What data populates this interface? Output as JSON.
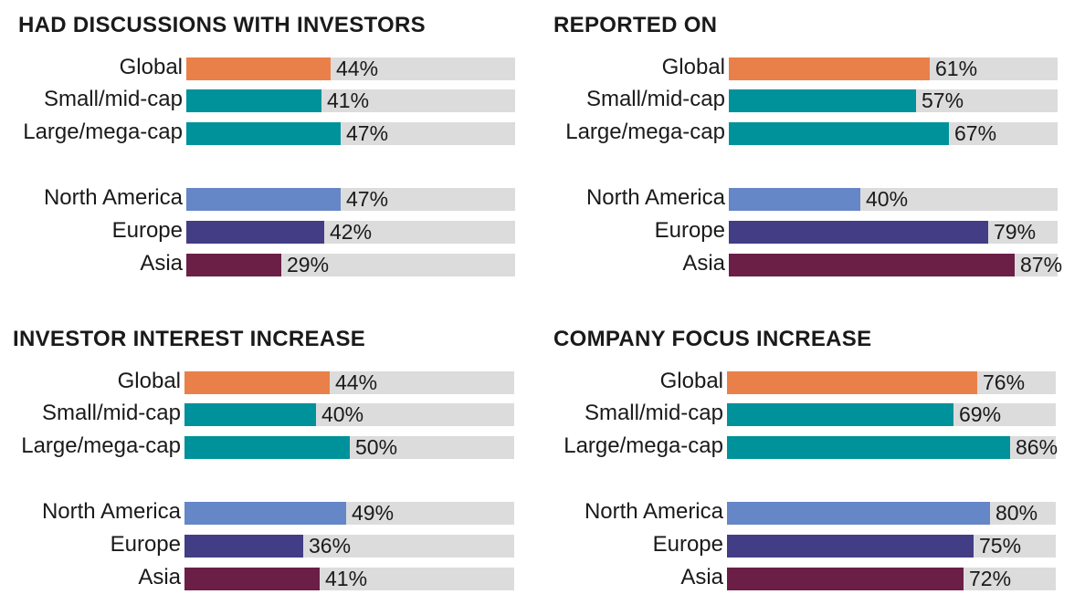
{
  "colors": {
    "Global": "#ea8049",
    "Small/mid-cap": "#00929a",
    "Large/mega-cap": "#00929a",
    "North America": "#6586c7",
    "Europe": "#433d86",
    "Asia": "#6b1f46",
    "track": "#dcdcdc"
  },
  "chart_data": [
    {
      "type": "bar",
      "title": "HAD DISCUSSIONS WITH INVESTORS",
      "categories": [
        "Global",
        "Small/mid-cap",
        "Large/mega-cap",
        "North America",
        "Europe",
        "Asia"
      ],
      "values": [
        44,
        41,
        47,
        47,
        42,
        29
      ],
      "value_labels": [
        "44%",
        "41%",
        "47%",
        "47%",
        "42%",
        "29%"
      ],
      "xlim": [
        0,
        100
      ]
    },
    {
      "type": "bar",
      "title": "REPORTED ON",
      "categories": [
        "Global",
        "Small/mid-cap",
        "Large/mega-cap",
        "North America",
        "Europe",
        "Asia"
      ],
      "values": [
        61,
        57,
        67,
        40,
        79,
        87
      ],
      "value_labels": [
        "61%",
        "57%",
        "67%",
        "40%",
        "79%",
        "87%"
      ],
      "xlim": [
        0,
        100
      ]
    },
    {
      "type": "bar",
      "title": "INVESTOR INTEREST INCREASE",
      "categories": [
        "Global",
        "Small/mid-cap",
        "Large/mega-cap",
        "North America",
        "Europe",
        "Asia"
      ],
      "values": [
        44,
        40,
        50,
        49,
        36,
        41
      ],
      "value_labels": [
        "44%",
        "40%",
        "50%",
        "49%",
        "36%",
        "41%"
      ],
      "xlim": [
        0,
        100
      ]
    },
    {
      "type": "bar",
      "title": "COMPANY FOCUS INCREASE",
      "categories": [
        "Global",
        "Small/mid-cap",
        "Large/mega-cap",
        "North America",
        "Europe",
        "Asia"
      ],
      "values": [
        76,
        69,
        86,
        80,
        75,
        72
      ],
      "value_labels": [
        "76%",
        "69%",
        "86%",
        "80%",
        "75%",
        "72%"
      ],
      "xlim": [
        0,
        100
      ]
    }
  ]
}
